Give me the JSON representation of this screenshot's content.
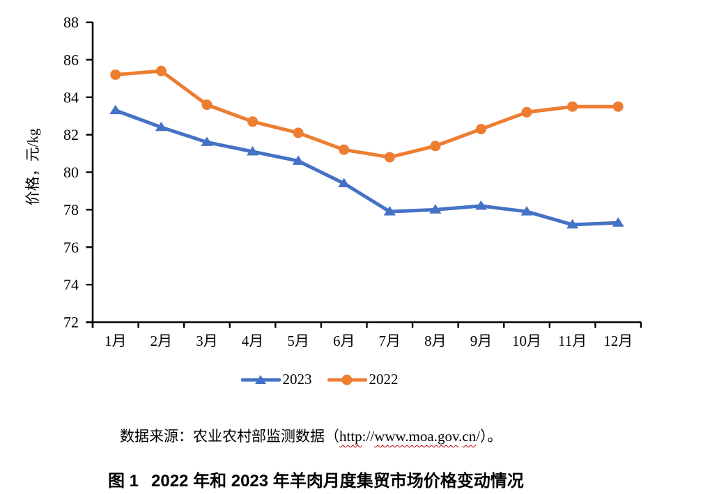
{
  "chart_data": {
    "type": "line",
    "title": "",
    "xlabel": "",
    "ylabel": "价格，元/kg",
    "ylim": [
      72,
      88
    ],
    "yticks": [
      72,
      74,
      76,
      78,
      80,
      82,
      84,
      86,
      88
    ],
    "grid": false,
    "legend_position": "bottom",
    "categories": [
      "1月",
      "2月",
      "3月",
      "4月",
      "5月",
      "6月",
      "7月",
      "8月",
      "9月",
      "10月",
      "11月",
      "12月"
    ],
    "series": [
      {
        "name": "2023",
        "color": "#4472C4",
        "marker": "triangle",
        "values": [
          83.3,
          82.4,
          81.6,
          81.1,
          80.6,
          79.4,
          77.9,
          78.0,
          78.2,
          77.9,
          77.2,
          77.3
        ]
      },
      {
        "name": "2022",
        "color": "#ED7D31",
        "marker": "circle",
        "values": [
          85.2,
          85.4,
          83.6,
          82.7,
          82.1,
          81.2,
          80.8,
          81.4,
          82.3,
          83.2,
          83.5,
          83.5
        ]
      }
    ]
  },
  "legend": {
    "items": [
      {
        "label": "2023",
        "color": "#4472C4",
        "marker": "triangle"
      },
      {
        "label": "2022",
        "color": "#ED7D31",
        "marker": "circle"
      }
    ]
  },
  "source_note": {
    "prefix": "数据来源：农业农村部监测数据（",
    "url_parts": [
      {
        "text": "http",
        "misspelled": true
      },
      {
        "text": "://",
        "misspelled": false
      },
      {
        "text": "www.moa.gov",
        "misspelled": true
      },
      {
        "text": ".",
        "misspelled": false
      },
      {
        "text": "cn",
        "misspelled": true
      },
      {
        "text": "/",
        "misspelled": false
      }
    ],
    "suffix": "）。"
  },
  "caption": {
    "label": "图 1",
    "text": "2022 年和 2023 年羊肉月度集贸市场价格变动情况"
  },
  "colors": {
    "series_2023": "#4472C4",
    "series_2022": "#ED7D31",
    "axis": "#000000",
    "spellcheck_underline": "#C00000",
    "background": "#ffffff"
  }
}
